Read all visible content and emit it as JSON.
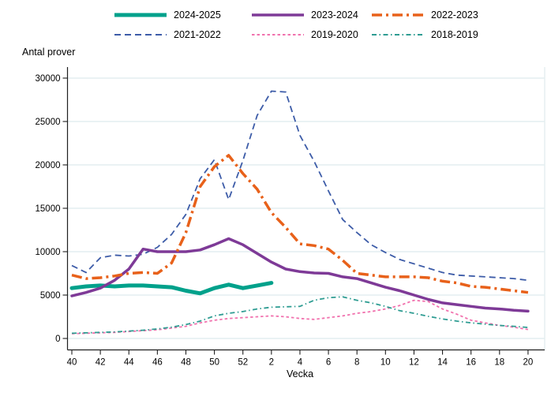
{
  "figure": {
    "ylabel": "Antal prover",
    "xlabel": "Vecka",
    "background": "#ffffff",
    "grid_color": "#e4eef0",
    "axis_color": "#1f1f1f"
  },
  "legend": {
    "position": "top",
    "items": [
      {
        "label": "2024-2025",
        "color": "#00A18B",
        "dash": "",
        "width": 5
      },
      {
        "label": "2023-2024",
        "color": "#7E3A97",
        "dash": "",
        "width": 3.5
      },
      {
        "label": "2022-2023",
        "color": "#E8611A",
        "dash": "13 5 3 5",
        "width": 3.5
      },
      {
        "label": "2021-2022",
        "color": "#3D5CA8",
        "dash": "8 5",
        "width": 2
      },
      {
        "label": "2019-2020",
        "color": "#F172AE",
        "dash": "3.5 3",
        "width": 2
      },
      {
        "label": "2018-2019",
        "color": "#2E9C92",
        "dash": "6 3.5 1.5 3.5",
        "width": 2
      }
    ]
  },
  "chart_data": {
    "type": "line",
    "title": "",
    "ylabel": "Antal prover",
    "xlabel": "Vecka",
    "ylim": [
      0,
      30000
    ],
    "ytick_step": 5000,
    "grid": true,
    "xtick_every": 2,
    "x_weeks": [
      "40",
      "41",
      "42",
      "43",
      "44",
      "45",
      "46",
      "47",
      "48",
      "49",
      "50",
      "51",
      "52",
      "1",
      "2",
      "3",
      "4",
      "5",
      "6",
      "7",
      "8",
      "9",
      "10",
      "11",
      "12",
      "13",
      "14",
      "15",
      "16",
      "17",
      "18",
      "19",
      "20"
    ],
    "series": [
      {
        "name": "2021-2022",
        "color": "#3D5CA8",
        "dash": "8 5",
        "width": 1.8,
        "values": [
          8400,
          7600,
          9300,
          9600,
          9500,
          9700,
          10500,
          12000,
          14300,
          18400,
          20600,
          16000,
          20500,
          25700,
          28500,
          28400,
          23400,
          20400,
          17000,
          13700,
          12200,
          10800,
          9900,
          9100,
          8600,
          8100,
          7600,
          7300,
          7200,
          7100,
          7000,
          6900,
          6700
        ]
      },
      {
        "name": "2019-2020",
        "color": "#F172AE",
        "dash": "3.5 3",
        "width": 1.8,
        "values": [
          550,
          600,
          650,
          700,
          800,
          900,
          1000,
          1200,
          1400,
          1800,
          2100,
          2300,
          2400,
          2500,
          2600,
          2500,
          2300,
          2200,
          2400,
          2600,
          2900,
          3100,
          3400,
          3800,
          4400,
          4250,
          3400,
          2800,
          2100,
          1800,
          1500,
          1300,
          1030
        ]
      },
      {
        "name": "2018-2019",
        "color": "#2E9C92",
        "dash": "6 3.5 1.5 3.5",
        "width": 1.8,
        "values": [
          600,
          650,
          700,
          750,
          850,
          950,
          1100,
          1300,
          1600,
          2000,
          2600,
          2900,
          3100,
          3400,
          3600,
          3650,
          3700,
          4400,
          4700,
          4800,
          4400,
          4100,
          3700,
          3200,
          2900,
          2550,
          2250,
          2000,
          1800,
          1650,
          1500,
          1400,
          1270
        ]
      },
      {
        "name": "2024-2025",
        "color": "#00A18B",
        "dash": "",
        "width": 5,
        "values": [
          5800,
          6000,
          6100,
          6000,
          6100,
          6100,
          6000,
          5900,
          5500,
          5200,
          5800,
          6200,
          5800,
          6100,
          6400
        ]
      },
      {
        "name": "2023-2024",
        "color": "#7E3A97",
        "dash": "",
        "width": 3.5,
        "values": [
          4900,
          5300,
          5800,
          6700,
          8000,
          10300,
          10000,
          10000,
          10000,
          10200,
          10800,
          11500,
          10800,
          9800,
          8800,
          8000,
          7700,
          7550,
          7500,
          7100,
          6900,
          6400,
          5900,
          5500,
          5000,
          4500,
          4100,
          3900,
          3700,
          3500,
          3400,
          3250,
          3150
        ]
      },
      {
        "name": "2022-2023",
        "color": "#E8611A",
        "dash": "13 5 3 5",
        "width": 3.5,
        "values": [
          7300,
          6900,
          7000,
          7200,
          7500,
          7600,
          7500,
          8700,
          12200,
          17500,
          19800,
          21100,
          19000,
          17200,
          14500,
          12800,
          10900,
          10700,
          10300,
          9000,
          7500,
          7300,
          7100,
          7100,
          7100,
          7000,
          6600,
          6400,
          6000,
          5900,
          5700,
          5500,
          5300
        ]
      }
    ]
  }
}
